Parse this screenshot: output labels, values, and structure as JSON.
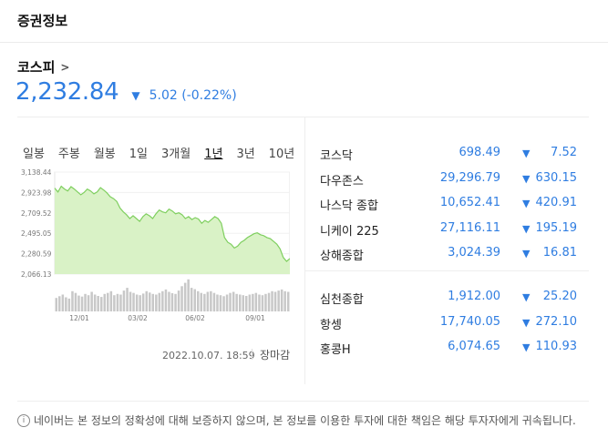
{
  "header": {
    "title": "증권정보"
  },
  "index": {
    "name": "코스피",
    "price": "2,232.84",
    "change": "5.02 (-0.22%)"
  },
  "period_tabs": [
    "일봉",
    "주봉",
    "월봉",
    "1일",
    "3개월",
    "1년",
    "3년",
    "10년"
  ],
  "active_tab": "1년",
  "timestamp": "2022.10.07. 18:59",
  "market_status": "장마감",
  "indices_group1": [
    {
      "name": "코스닥",
      "value": "698.49",
      "change": "7.52"
    },
    {
      "name": "다우존스",
      "value": "29,296.79",
      "change": "630.15"
    },
    {
      "name": "나스닥 종합",
      "value": "10,652.41",
      "change": "420.91"
    },
    {
      "name": "니케이 225",
      "value": "27,116.11",
      "change": "195.19"
    },
    {
      "name": "상해종합",
      "value": "3,024.39",
      "change": "16.81"
    }
  ],
  "indices_group2": [
    {
      "name": "심천종합",
      "value": "1,912.00",
      "change": "25.20"
    },
    {
      "name": "항셍",
      "value": "17,740.05",
      "change": "272.10"
    },
    {
      "name": "홍콩H",
      "value": "6,074.65",
      "change": "110.93"
    }
  ],
  "disclaimer": "네이버는 본 정보의 정확성에 대해 보증하지 않으며, 본 정보를 이용한 투자에 대한 책임은 해당 투자자에게 귀속됩니다.",
  "colors": {
    "accent": "#2f7de1",
    "chart_fill": "#d9f2c6",
    "chart_line": "#7fcf5f"
  },
  "chart_data": {
    "type": "area",
    "y_ticks": [
      "3,138.44",
      "2,923.98",
      "2,709.52",
      "2,495.05",
      "2,280.59",
      "2,066.13"
    ],
    "x_ticks": [
      "12/01",
      "03/02",
      "06/02",
      "09/01"
    ],
    "ylim": [
      2066.13,
      3138.44
    ],
    "values": [
      2970,
      2930,
      2990,
      2960,
      2940,
      2985,
      2960,
      2930,
      2900,
      2925,
      2960,
      2940,
      2910,
      2930,
      2975,
      2950,
      2920,
      2880,
      2860,
      2830,
      2760,
      2720,
      2690,
      2650,
      2680,
      2650,
      2620,
      2670,
      2700,
      2680,
      2650,
      2700,
      2740,
      2720,
      2710,
      2750,
      2730,
      2700,
      2710,
      2690,
      2650,
      2670,
      2640,
      2660,
      2645,
      2600,
      2630,
      2610,
      2640,
      2670,
      2650,
      2600,
      2450,
      2400,
      2380,
      2340,
      2360,
      2400,
      2420,
      2450,
      2470,
      2490,
      2500,
      2480,
      2470,
      2450,
      2440,
      2410,
      2380,
      2330,
      2240,
      2200,
      2230
    ],
    "volume": [
      0.4,
      0.45,
      0.5,
      0.42,
      0.38,
      0.6,
      0.55,
      0.47,
      0.44,
      0.52,
      0.48,
      0.58,
      0.5,
      0.46,
      0.43,
      0.52,
      0.55,
      0.6,
      0.48,
      0.52,
      0.5,
      0.62,
      0.7,
      0.58,
      0.55,
      0.5,
      0.48,
      0.53,
      0.6,
      0.56,
      0.52,
      0.5,
      0.55,
      0.6,
      0.65,
      0.58,
      0.54,
      0.52,
      0.62,
      0.75,
      0.85,
      0.95,
      0.7,
      0.66,
      0.6,
      0.55,
      0.52,
      0.58,
      0.6,
      0.55,
      0.5,
      0.48,
      0.45,
      0.5,
      0.55,
      0.58,
      0.52,
      0.5,
      0.48,
      0.46,
      0.5,
      0.52,
      0.55,
      0.5,
      0.48,
      0.52,
      0.55,
      0.6,
      0.58,
      0.62,
      0.65,
      0.6,
      0.58
    ]
  }
}
